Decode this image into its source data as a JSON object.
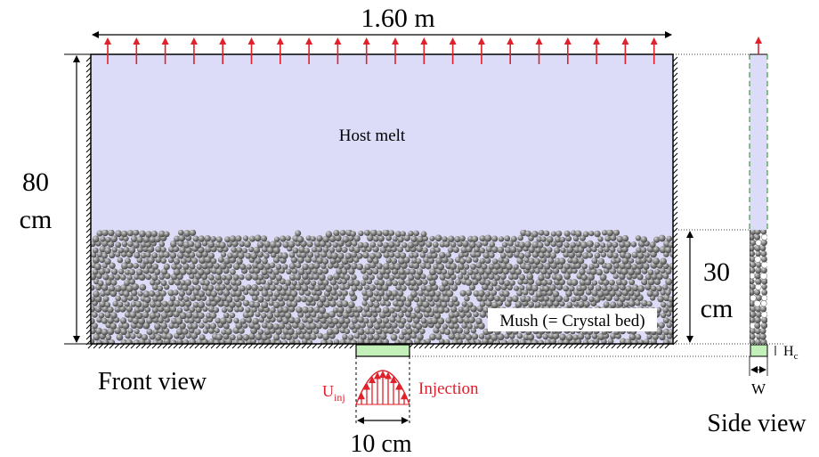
{
  "labels": {
    "width": "1.60 m",
    "height_line1": "80",
    "height_line2": "cm",
    "host_melt": "Host melt",
    "mush": "Mush (= Crystal bed)",
    "bed_height_line1": "30",
    "bed_height_line2": "cm",
    "front_view": "Front view",
    "side_view": "Side view",
    "injection": "Injection",
    "u_main": "U",
    "u_sub": "inj",
    "inlet_width": "10 cm",
    "hc_main": "H",
    "hc_sub": "c",
    "w": "W"
  },
  "colors": {
    "melt": "#dcdcf8",
    "bead_dark": "#4a4a4a",
    "bead_light": "#d6d6d6",
    "arrow_red": "#e0202a",
    "inlet_green": "#c2f0b8",
    "side_dash": "#3f9a3f"
  },
  "icons": {
    "outflow_arrow": "up-arrow-icon",
    "wall_hatch": "hatch-icon"
  }
}
